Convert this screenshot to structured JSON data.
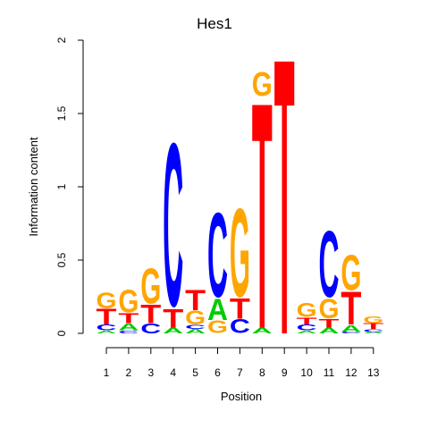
{
  "chart_data": {
    "type": "sequence-logo",
    "title": "Hes1",
    "xlabel": "Position",
    "ylabel": "Information content",
    "ylim": [
      0,
      2
    ],
    "yticks": [
      "0",
      "0.5",
      "1",
      "1.5",
      "2"
    ],
    "positions": [
      "1",
      "2",
      "3",
      "4",
      "5",
      "6",
      "7",
      "8",
      "9",
      "10",
      "11",
      "12",
      "13"
    ],
    "colors": {
      "A": "#00cc00",
      "C": "#0000ff",
      "G": "#ffa500",
      "T": "#ff0000"
    },
    "stacks": [
      [
        [
          "A",
          0.02
        ],
        [
          "C",
          0.04
        ],
        [
          "T",
          0.11
        ],
        [
          "G",
          0.11
        ]
      ],
      [
        [
          "C",
          0.02
        ],
        [
          "A",
          0.05
        ],
        [
          "T",
          0.07
        ],
        [
          "G",
          0.16
        ]
      ],
      [
        [
          "C",
          0.07
        ],
        [
          "T",
          0.13
        ],
        [
          "G",
          0.25
        ]
      ],
      [
        [
          "A",
          0.04
        ],
        [
          "T",
          0.13
        ],
        [
          "C",
          1.16
        ]
      ],
      [
        [
          "A",
          0.03
        ],
        [
          "C",
          0.03
        ],
        [
          "G",
          0.1
        ],
        [
          "T",
          0.14
        ]
      ],
      [
        [
          "G",
          0.09
        ],
        [
          "A",
          0.15
        ],
        [
          "C",
          0.6
        ]
      ],
      [
        [
          "C",
          0.1
        ],
        [
          "T",
          0.14
        ],
        [
          "G",
          0.63
        ]
      ],
      [
        [
          "A",
          0.04
        ],
        [
          "T",
          1.58
        ],
        [
          "G",
          0.17
        ]
      ],
      [
        [
          "T",
          1.93
        ]
      ],
      [
        [
          "A",
          0.02
        ],
        [
          "C",
          0.04
        ],
        [
          "T",
          0.05
        ],
        [
          "G",
          0.1
        ]
      ],
      [
        [
          "A",
          0.04
        ],
        [
          "T",
          0.06
        ],
        [
          "G",
          0.14
        ],
        [
          "C",
          0.47
        ]
      ],
      [
        [
          "C",
          0.01
        ],
        [
          "A",
          0.05
        ],
        [
          "T",
          0.23
        ],
        [
          "G",
          0.25
        ]
      ],
      [
        [
          "A",
          0.01
        ],
        [
          "C",
          0.02
        ],
        [
          "T",
          0.04
        ],
        [
          "G",
          0.05
        ]
      ]
    ]
  }
}
